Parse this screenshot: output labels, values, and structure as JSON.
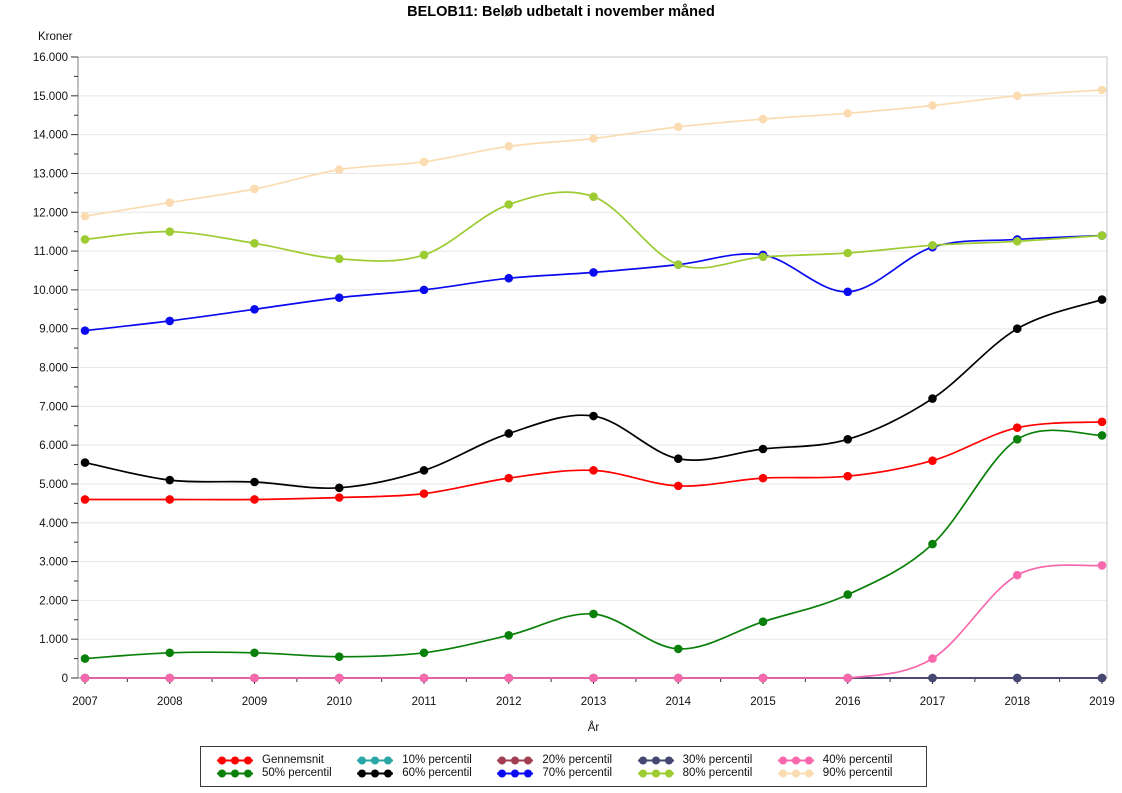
{
  "title": "BELOB11: Beløb udbetalt i november måned",
  "axes": {
    "y_title": "Kroner",
    "x_title": "År"
  },
  "chart_data": {
    "type": "line",
    "title": "BELOB11: Beløb udbetalt i november måned",
    "xlabel": "År",
    "ylabel": "Kroner",
    "x": [
      2007,
      2008,
      2009,
      2010,
      2011,
      2012,
      2013,
      2014,
      2015,
      2016,
      2017,
      2018,
      2019
    ],
    "ylim": [
      0,
      16000
    ],
    "ytick_interval": 1000,
    "ytick_labels": [
      "0",
      "1.000",
      "2.000",
      "3.000",
      "4.000",
      "5.000",
      "6.000",
      "7.000",
      "8.000",
      "9.000",
      "10.000",
      "11.000",
      "12.000",
      "13.000",
      "14.000",
      "15.000",
      "16.000"
    ],
    "grid": true,
    "legend_position": "bottom",
    "series": [
      {
        "name": "Gennemsnit",
        "color": "#ff0000",
        "values": [
          4600,
          4600,
          4600,
          4650,
          4750,
          5150,
          5350,
          4950,
          5150,
          5200,
          5600,
          6450,
          6600
        ]
      },
      {
        "name": "10% percentil",
        "color": "#2aa6a6",
        "values": [
          0,
          0,
          0,
          0,
          0,
          0,
          0,
          0,
          0,
          0,
          0,
          0,
          0
        ]
      },
      {
        "name": "20% percentil",
        "color": "#a23e52",
        "values": [
          0,
          0,
          0,
          0,
          0,
          0,
          0,
          0,
          0,
          0,
          0,
          0,
          0
        ]
      },
      {
        "name": "30% percentil",
        "color": "#454872",
        "values": [
          0,
          0,
          0,
          0,
          0,
          0,
          0,
          0,
          0,
          0,
          0,
          0,
          0
        ]
      },
      {
        "name": "40% percentil",
        "color": "#f768ac",
        "values": [
          0,
          0,
          0,
          0,
          0,
          0,
          0,
          0,
          0,
          0,
          500,
          2650,
          2900
        ]
      },
      {
        "name": "50% percentil",
        "color": "#098009",
        "values": [
          500,
          650,
          650,
          550,
          650,
          1100,
          1650,
          750,
          1450,
          2150,
          3450,
          6150,
          6250
        ]
      },
      {
        "name": "60% percentil",
        "color": "#000000",
        "values": [
          5550,
          5100,
          5050,
          4900,
          5350,
          6300,
          6750,
          5650,
          5900,
          6150,
          7200,
          9000,
          9750
        ]
      },
      {
        "name": "70% percentil",
        "color": "#0a0af0",
        "values": [
          8950,
          9200,
          9500,
          9800,
          10000,
          10300,
          10450,
          10650,
          10900,
          9950,
          11100,
          11300,
          11400
        ]
      },
      {
        "name": "80% percentil",
        "color": "#9dcb32",
        "values": [
          11300,
          11500,
          11200,
          10800,
          10900,
          12200,
          12400,
          10650,
          10850,
          10950,
          11150,
          11250,
          11400
        ]
      },
      {
        "name": "90% percentil",
        "color": "#fbdcb2",
        "values": [
          11900,
          12250,
          12600,
          13100,
          13300,
          13700,
          13900,
          14200,
          14400,
          14550,
          14750,
          15000,
          15150
        ]
      }
    ]
  },
  "colors": {
    "gridline": "#e8e8e8",
    "frame": "#c4c4c4",
    "axis": "#808080",
    "tick": "#333333",
    "label": "#111111"
  }
}
